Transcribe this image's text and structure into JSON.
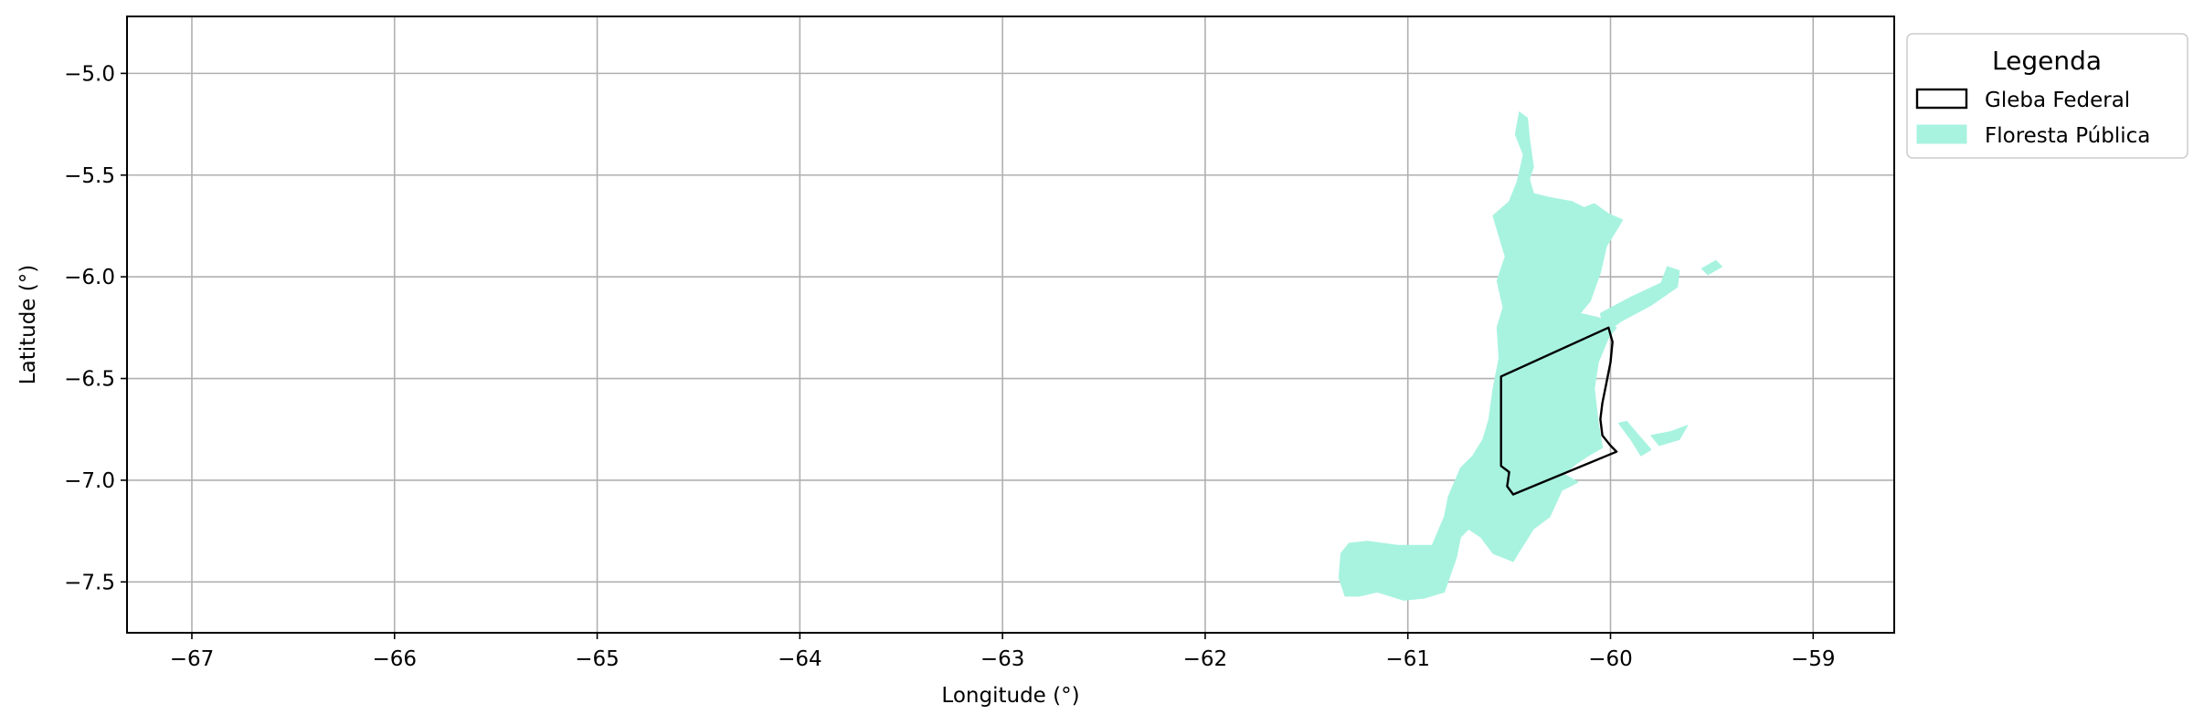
{
  "chart_data": {
    "type": "map",
    "xlabel": "Longitude (°)",
    "ylabel": "Latitude (°)",
    "xlim": [
      -67.32,
      -58.6
    ],
    "ylim": [
      -7.75,
      -4.72
    ],
    "xticks": [
      -67,
      -66,
      -65,
      -64,
      -63,
      -62,
      -61,
      -60,
      -59
    ],
    "xtick_labels": [
      "−67",
      "−66",
      "−65",
      "−64",
      "−63",
      "−62",
      "−61",
      "−60",
      "−59"
    ],
    "yticks": [
      -5.0,
      -5.5,
      -6.0,
      -6.5,
      -7.0,
      -7.5
    ],
    "ytick_labels": [
      "−5.0",
      "−5.5",
      "−6.0",
      "−6.5",
      "−7.0",
      "−7.5"
    ],
    "grid": true,
    "legend": {
      "title": "Legenda",
      "placement": "outside upper right",
      "entries": [
        {
          "label": "Gleba Federal",
          "style": "outline",
          "edge_color": "#000000",
          "fill_color": "none"
        },
        {
          "label": "Floresta Pública",
          "style": "filled",
          "edge_color": "#a8f3e0",
          "fill_color": "#a8f3e0"
        }
      ]
    },
    "series": [
      {
        "name": "Floresta Pública",
        "color": "#a8f3e0",
        "polygons": [
          [
            [
              -60.45,
              -5.19
            ],
            [
              -60.41,
              -5.22
            ],
            [
              -60.4,
              -5.32
            ],
            [
              -60.38,
              -5.46
            ],
            [
              -60.4,
              -5.52
            ],
            [
              -60.38,
              -5.59
            ],
            [
              -60.3,
              -5.61
            ],
            [
              -60.19,
              -5.63
            ],
            [
              -60.13,
              -5.66
            ],
            [
              -60.08,
              -5.64
            ],
            [
              -60.01,
              -5.69
            ],
            [
              -59.94,
              -5.72
            ],
            [
              -59.97,
              -5.77
            ],
            [
              -60.02,
              -5.85
            ],
            [
              -60.05,
              -5.98
            ],
            [
              -60.1,
              -6.12
            ],
            [
              -60.15,
              -6.18
            ],
            [
              -60.06,
              -6.2
            ],
            [
              -59.97,
              -6.25
            ],
            [
              -60.01,
              -6.3
            ],
            [
              -60.06,
              -6.42
            ],
            [
              -60.08,
              -6.55
            ],
            [
              -60.06,
              -6.72
            ],
            [
              -60.04,
              -6.84
            ],
            [
              -60.11,
              -6.88
            ],
            [
              -60.17,
              -6.92
            ],
            [
              -60.23,
              -6.97
            ],
            [
              -60.16,
              -7.01
            ],
            [
              -60.24,
              -7.05
            ],
            [
              -60.3,
              -7.18
            ],
            [
              -60.38,
              -7.24
            ],
            [
              -60.45,
              -7.35
            ],
            [
              -60.48,
              -7.4
            ],
            [
              -60.58,
              -7.36
            ],
            [
              -60.64,
              -7.28
            ],
            [
              -60.7,
              -7.24
            ],
            [
              -60.74,
              -7.28
            ],
            [
              -60.76,
              -7.38
            ],
            [
              -60.82,
              -7.55
            ],
            [
              -60.92,
              -7.58
            ],
            [
              -61.02,
              -7.59
            ],
            [
              -61.15,
              -7.55
            ],
            [
              -61.24,
              -7.57
            ],
            [
              -61.31,
              -7.57
            ],
            [
              -61.34,
              -7.48
            ],
            [
              -61.33,
              -7.36
            ],
            [
              -61.29,
              -7.31
            ],
            [
              -61.2,
              -7.3
            ],
            [
              -61.05,
              -7.32
            ],
            [
              -60.88,
              -7.32
            ],
            [
              -60.82,
              -7.18
            ],
            [
              -60.8,
              -7.08
            ],
            [
              -60.74,
              -6.94
            ],
            [
              -60.68,
              -6.88
            ],
            [
              -60.63,
              -6.8
            ],
            [
              -60.6,
              -6.7
            ],
            [
              -60.58,
              -6.55
            ],
            [
              -60.55,
              -6.4
            ],
            [
              -60.56,
              -6.25
            ],
            [
              -60.53,
              -6.15
            ],
            [
              -60.56,
              -6.02
            ],
            [
              -60.52,
              -5.9
            ],
            [
              -60.55,
              -5.8
            ],
            [
              -60.58,
              -5.7
            ],
            [
              -60.5,
              -5.63
            ],
            [
              -60.46,
              -5.53
            ],
            [
              -60.43,
              -5.4
            ],
            [
              -60.47,
              -5.3
            ],
            [
              -60.45,
              -5.19
            ]
          ],
          [
            [
              -60.05,
              -6.18
            ],
            [
              -59.9,
              -6.1
            ],
            [
              -59.75,
              -6.03
            ],
            [
              -59.72,
              -5.95
            ],
            [
              -59.66,
              -5.97
            ],
            [
              -59.67,
              -6.05
            ],
            [
              -59.8,
              -6.14
            ],
            [
              -59.95,
              -6.22
            ],
            [
              -60.03,
              -6.28
            ],
            [
              -60.05,
              -6.18
            ]
          ],
          [
            [
              -59.55,
              -5.96
            ],
            [
              -59.48,
              -5.92
            ],
            [
              -59.45,
              -5.95
            ],
            [
              -59.52,
              -5.99
            ],
            [
              -59.55,
              -5.96
            ]
          ],
          [
            [
              -59.96,
              -6.72
            ],
            [
              -59.9,
              -6.8
            ],
            [
              -59.85,
              -6.88
            ],
            [
              -59.8,
              -6.85
            ],
            [
              -59.86,
              -6.78
            ],
            [
              -59.92,
              -6.71
            ],
            [
              -59.96,
              -6.72
            ]
          ],
          [
            [
              -59.8,
              -6.78
            ],
            [
              -59.7,
              -6.76
            ],
            [
              -59.62,
              -6.73
            ],
            [
              -59.66,
              -6.8
            ],
            [
              -59.76,
              -6.83
            ],
            [
              -59.8,
              -6.78
            ]
          ]
        ]
      },
      {
        "name": "Gleba Federal",
        "color": "#000000",
        "polygons": [
          [
            [
              -60.54,
              -6.49
            ],
            [
              -60.01,
              -6.25
            ],
            [
              -59.99,
              -6.32
            ],
            [
              -60.0,
              -6.42
            ],
            [
              -60.02,
              -6.52
            ],
            [
              -60.04,
              -6.62
            ],
            [
              -60.05,
              -6.7
            ],
            [
              -60.04,
              -6.78
            ],
            [
              -60.0,
              -6.83
            ],
            [
              -59.97,
              -6.86
            ],
            [
              -60.48,
              -7.07
            ],
            [
              -60.51,
              -7.03
            ],
            [
              -60.5,
              -6.96
            ],
            [
              -60.54,
              -6.93
            ],
            [
              -60.54,
              -6.49
            ]
          ]
        ]
      }
    ]
  }
}
